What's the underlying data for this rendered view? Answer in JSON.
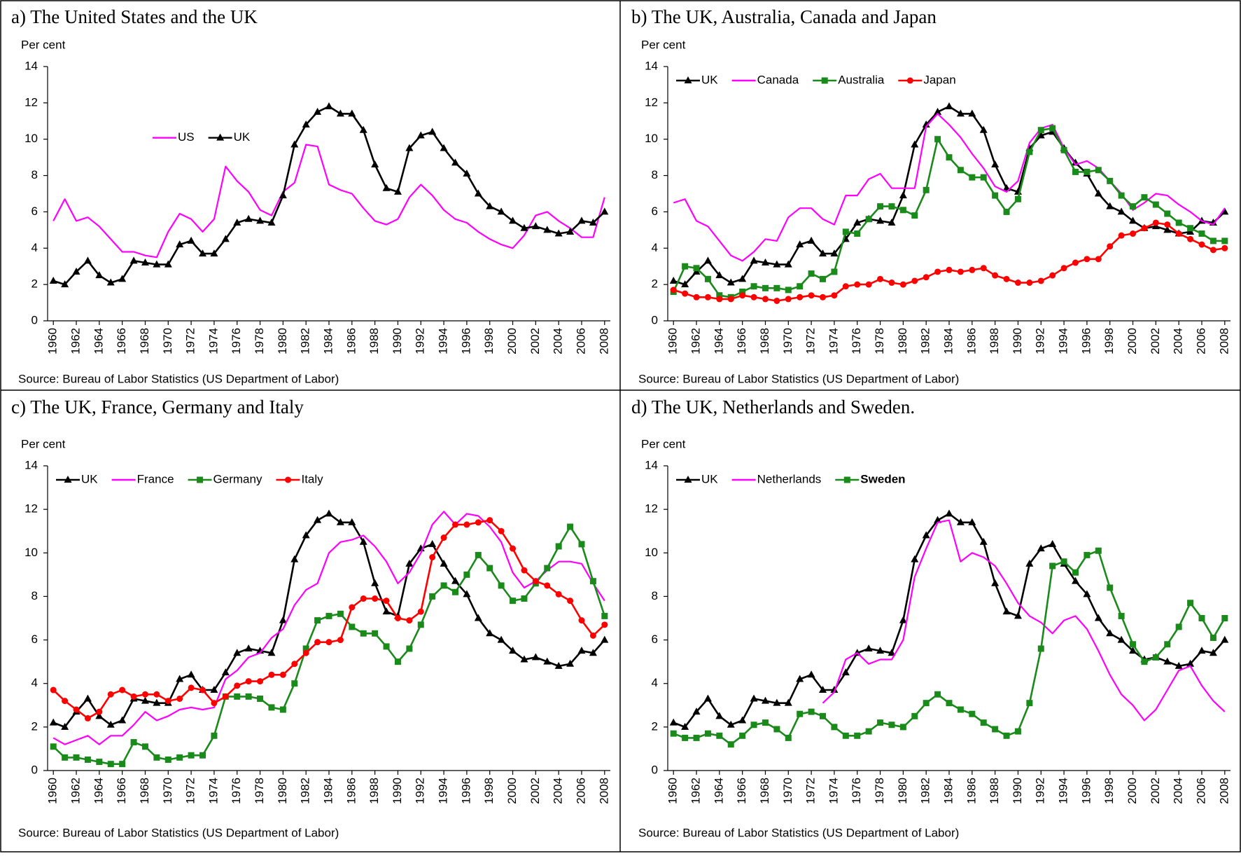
{
  "chart_data": [
    {
      "type": "line",
      "title": "a) The United States and the UK",
      "ylabel": "Per cent",
      "source": "Source: Bureau of Labor Statistics (US Department of Labor)",
      "x": [
        1960,
        1961,
        1962,
        1963,
        1964,
        1965,
        1966,
        1967,
        1968,
        1969,
        1970,
        1971,
        1972,
        1973,
        1974,
        1975,
        1976,
        1977,
        1978,
        1979,
        1980,
        1981,
        1982,
        1983,
        1984,
        1985,
        1986,
        1987,
        1988,
        1989,
        1990,
        1991,
        1992,
        1993,
        1994,
        1995,
        1996,
        1997,
        1998,
        1999,
        2000,
        2001,
        2002,
        2003,
        2004,
        2005,
        2006,
        2007,
        2008
      ],
      "xlim": [
        1960,
        2008
      ],
      "xticks": [
        1960,
        1962,
        1964,
        1966,
        1968,
        1970,
        1972,
        1974,
        1976,
        1978,
        1980,
        1982,
        1984,
        1986,
        1988,
        1990,
        1992,
        1994,
        1996,
        1998,
        2000,
        2002,
        2004,
        2006,
        2008
      ],
      "ylim": [
        0,
        14
      ],
      "yticks": [
        0,
        2,
        4,
        6,
        8,
        10,
        12,
        14
      ],
      "legend": "center left",
      "series": [
        {
          "name": "US",
          "color": "#ff00ff",
          "marker": "none",
          "values": [
            5.5,
            6.7,
            5.5,
            5.7,
            5.2,
            4.5,
            3.8,
            3.8,
            3.6,
            3.5,
            4.9,
            5.9,
            5.6,
            4.9,
            5.6,
            8.5,
            7.7,
            7.1,
            6.1,
            5.8,
            7.1,
            7.6,
            9.7,
            9.6,
            7.5,
            7.2,
            7.0,
            6.2,
            5.5,
            5.3,
            5.6,
            6.8,
            7.5,
            6.9,
            6.1,
            5.6,
            5.4,
            4.9,
            4.5,
            4.2,
            4.0,
            4.7,
            5.8,
            6.0,
            5.5,
            5.1,
            4.6,
            4.6,
            6.8
          ]
        },
        {
          "name": "UK",
          "color": "#000000",
          "marker": "triangle",
          "values": [
            2.2,
            2.0,
            2.7,
            3.3,
            2.5,
            2.1,
            2.3,
            3.3,
            3.2,
            3.1,
            3.1,
            4.2,
            4.4,
            3.7,
            3.7,
            4.5,
            5.4,
            5.6,
            5.5,
            5.4,
            6.9,
            9.7,
            10.8,
            11.5,
            11.8,
            11.4,
            11.4,
            10.5,
            8.6,
            7.3,
            7.1,
            9.5,
            10.2,
            10.4,
            9.5,
            8.7,
            8.1,
            7.0,
            6.3,
            6.0,
            5.5,
            5.1,
            5.2,
            5.0,
            4.8,
            4.9,
            5.5,
            5.4,
            6.0
          ]
        }
      ]
    },
    {
      "type": "line",
      "title": "b)  The UK, Australia, Canada and Japan",
      "ylabel": "Per cent",
      "source": "Source: Bureau of Labor Statistics (US Department of Labor)",
      "x": [
        1960,
        1961,
        1962,
        1963,
        1964,
        1965,
        1966,
        1967,
        1968,
        1969,
        1970,
        1971,
        1972,
        1973,
        1974,
        1975,
        1976,
        1977,
        1978,
        1979,
        1980,
        1981,
        1982,
        1983,
        1984,
        1985,
        1986,
        1987,
        1988,
        1989,
        1990,
        1991,
        1992,
        1993,
        1994,
        1995,
        1996,
        1997,
        1998,
        1999,
        2000,
        2001,
        2002,
        2003,
        2004,
        2005,
        2006,
        2007,
        2008
      ],
      "xlim": [
        1960,
        2008
      ],
      "xticks": [
        1960,
        1962,
        1964,
        1966,
        1968,
        1970,
        1972,
        1974,
        1976,
        1978,
        1980,
        1982,
        1984,
        1986,
        1988,
        1990,
        1992,
        1994,
        1996,
        1998,
        2000,
        2002,
        2004,
        2006,
        2008
      ],
      "ylim": [
        0,
        14
      ],
      "yticks": [
        0,
        2,
        4,
        6,
        8,
        10,
        12,
        14
      ],
      "legend": "upper left",
      "series": [
        {
          "name": "UK",
          "color": "#000000",
          "marker": "triangle",
          "values": [
            2.2,
            2.0,
            2.7,
            3.3,
            2.5,
            2.1,
            2.3,
            3.3,
            3.2,
            3.1,
            3.1,
            4.2,
            4.4,
            3.7,
            3.7,
            4.5,
            5.4,
            5.6,
            5.5,
            5.4,
            6.9,
            9.7,
            10.8,
            11.5,
            11.8,
            11.4,
            11.4,
            10.5,
            8.6,
            7.3,
            7.1,
            9.5,
            10.2,
            10.4,
            9.5,
            8.7,
            8.1,
            7.0,
            6.3,
            6.0,
            5.5,
            5.1,
            5.2,
            5.0,
            4.8,
            4.9,
            5.5,
            5.4,
            6.0
          ]
        },
        {
          "name": "Canada",
          "color": "#ff00ff",
          "marker": "none",
          "values": [
            6.5,
            6.7,
            5.5,
            5.2,
            4.4,
            3.6,
            3.3,
            3.8,
            4.5,
            4.4,
            5.7,
            6.2,
            6.2,
            5.6,
            5.3,
            6.9,
            6.9,
            7.8,
            8.1,
            7.3,
            7.3,
            7.3,
            10.7,
            11.4,
            10.8,
            10.1,
            9.2,
            8.4,
            7.4,
            7.1,
            7.7,
            9.8,
            10.6,
            10.8,
            9.5,
            8.6,
            8.8,
            8.4,
            7.7,
            7.0,
            6.1,
            6.5,
            7.0,
            6.9,
            6.4,
            6.0,
            5.5,
            5.3,
            6.2
          ]
        },
        {
          "name": "Australia",
          "color": "#1a8a1a",
          "marker": "square",
          "values": [
            1.6,
            3.0,
            2.9,
            2.3,
            1.4,
            1.3,
            1.6,
            1.9,
            1.8,
            1.8,
            1.7,
            1.9,
            2.6,
            2.3,
            2.7,
            4.9,
            4.8,
            5.6,
            6.3,
            6.3,
            6.1,
            5.8,
            7.2,
            10.0,
            9.0,
            8.3,
            7.9,
            7.9,
            6.9,
            6.0,
            6.7,
            9.3,
            10.5,
            10.6,
            9.4,
            8.2,
            8.2,
            8.3,
            7.7,
            6.9,
            6.3,
            6.8,
            6.4,
            5.9,
            5.4,
            5.1,
            4.8,
            4.4,
            4.4
          ]
        },
        {
          "name": "Japan",
          "color": "#ff0000",
          "marker": "circle",
          "values": [
            1.7,
            1.5,
            1.3,
            1.3,
            1.2,
            1.2,
            1.4,
            1.3,
            1.2,
            1.1,
            1.2,
            1.3,
            1.4,
            1.3,
            1.4,
            1.9,
            2.0,
            2.0,
            2.3,
            2.1,
            2.0,
            2.2,
            2.4,
            2.7,
            2.8,
            2.7,
            2.8,
            2.9,
            2.5,
            2.3,
            2.1,
            2.1,
            2.2,
            2.5,
            2.9,
            3.2,
            3.4,
            3.4,
            4.1,
            4.7,
            4.8,
            5.1,
            5.4,
            5.3,
            4.8,
            4.5,
            4.2,
            3.9,
            4.0
          ]
        }
      ]
    },
    {
      "type": "line",
      "title": "c)  The UK, France, Germany and Italy",
      "ylabel": "Per cent",
      "source": "Source: Bureau of Labor Statistics (US Department of Labor)",
      "x": [
        1960,
        1961,
        1962,
        1963,
        1964,
        1965,
        1966,
        1967,
        1968,
        1969,
        1970,
        1971,
        1972,
        1973,
        1974,
        1975,
        1976,
        1977,
        1978,
        1979,
        1980,
        1981,
        1982,
        1983,
        1984,
        1985,
        1986,
        1987,
        1988,
        1989,
        1990,
        1991,
        1992,
        1993,
        1994,
        1995,
        1996,
        1997,
        1998,
        1999,
        2000,
        2001,
        2002,
        2003,
        2004,
        2005,
        2006,
        2007,
        2008
      ],
      "xlim": [
        1960,
        2008
      ],
      "xticks": [
        1960,
        1962,
        1964,
        1966,
        1968,
        1970,
        1972,
        1974,
        1976,
        1978,
        1980,
        1982,
        1984,
        1986,
        1988,
        1990,
        1992,
        1994,
        1996,
        1998,
        2000,
        2002,
        2004,
        2006,
        2008
      ],
      "ylim": [
        0,
        14
      ],
      "yticks": [
        0,
        2,
        4,
        6,
        8,
        10,
        12,
        14
      ],
      "legend": "upper left",
      "series": [
        {
          "name": "UK",
          "color": "#000000",
          "marker": "triangle",
          "values": [
            2.2,
            2.0,
            2.7,
            3.3,
            2.5,
            2.1,
            2.3,
            3.3,
            3.2,
            3.1,
            3.1,
            4.2,
            4.4,
            3.7,
            3.7,
            4.5,
            5.4,
            5.6,
            5.5,
            5.4,
            6.9,
            9.7,
            10.8,
            11.5,
            11.8,
            11.4,
            11.4,
            10.5,
            8.6,
            7.3,
            7.1,
            9.5,
            10.2,
            10.4,
            9.5,
            8.7,
            8.1,
            7.0,
            6.3,
            6.0,
            5.5,
            5.1,
            5.2,
            5.0,
            4.8,
            4.9,
            5.5,
            5.4,
            6.0
          ]
        },
        {
          "name": "France",
          "color": "#ff00ff",
          "marker": "none",
          "values": [
            1.5,
            1.2,
            1.4,
            1.6,
            1.2,
            1.6,
            1.6,
            2.1,
            2.7,
            2.3,
            2.5,
            2.8,
            2.9,
            2.8,
            2.9,
            4.2,
            4.6,
            5.2,
            5.4,
            6.1,
            6.5,
            7.6,
            8.3,
            8.6,
            10.0,
            10.5,
            10.6,
            10.8,
            10.3,
            9.6,
            8.6,
            9.1,
            10.0,
            11.3,
            11.9,
            11.3,
            11.8,
            11.7,
            11.2,
            10.5,
            9.1,
            8.4,
            8.7,
            9.2,
            9.6,
            9.6,
            9.5,
            8.6,
            7.8
          ]
        },
        {
          "name": "Germany",
          "color": "#1a8a1a",
          "marker": "square",
          "values": [
            1.1,
            0.6,
            0.6,
            0.5,
            0.4,
            0.3,
            0.3,
            1.3,
            1.1,
            0.6,
            0.5,
            0.6,
            0.7,
            0.7,
            1.6,
            3.4,
            3.4,
            3.4,
            3.3,
            2.9,
            2.8,
            4.0,
            5.6,
            6.9,
            7.1,
            7.2,
            6.6,
            6.3,
            6.3,
            5.7,
            5.0,
            5.6,
            6.7,
            8.0,
            8.5,
            8.2,
            9.0,
            9.9,
            9.3,
            8.5,
            7.8,
            7.9,
            8.6,
            9.3,
            10.3,
            11.2,
            10.4,
            8.7,
            7.1
          ]
        },
        {
          "name": "Italy",
          "color": "#ff0000",
          "marker": "circle",
          "values": [
            3.7,
            3.2,
            2.8,
            2.4,
            2.7,
            3.5,
            3.7,
            3.4,
            3.5,
            3.5,
            3.2,
            3.3,
            3.8,
            3.7,
            3.1,
            3.4,
            3.9,
            4.1,
            4.1,
            4.4,
            4.4,
            4.9,
            5.4,
            5.9,
            5.9,
            6.0,
            7.5,
            7.9,
            7.9,
            7.8,
            7.0,
            6.9,
            7.3,
            9.8,
            10.7,
            11.3,
            11.3,
            11.4,
            11.5,
            11.0,
            10.2,
            9.2,
            8.7,
            8.5,
            8.1,
            7.8,
            6.9,
            6.2,
            6.7
          ]
        }
      ]
    },
    {
      "type": "line",
      "title": "d)  The UK, Netherlands and Sweden.",
      "ylabel": "Per cent",
      "source": "Source: Bureau of Labor Statistics (US Department of Labor)",
      "x": [
        1960,
        1961,
        1962,
        1963,
        1964,
        1965,
        1966,
        1967,
        1968,
        1969,
        1970,
        1971,
        1972,
        1973,
        1974,
        1975,
        1976,
        1977,
        1978,
        1979,
        1980,
        1981,
        1982,
        1983,
        1984,
        1985,
        1986,
        1987,
        1988,
        1989,
        1990,
        1991,
        1992,
        1993,
        1994,
        1995,
        1996,
        1997,
        1998,
        1999,
        2000,
        2001,
        2002,
        2003,
        2004,
        2005,
        2006,
        2007,
        2008
      ],
      "xlim": [
        1960,
        2008
      ],
      "xticks": [
        1960,
        1962,
        1964,
        1966,
        1968,
        1970,
        1972,
        1974,
        1976,
        1978,
        1980,
        1982,
        1984,
        1986,
        1988,
        1990,
        1992,
        1994,
        1996,
        1998,
        2000,
        2002,
        2004,
        2006,
        2008
      ],
      "ylim": [
        0,
        14
      ],
      "yticks": [
        0,
        2,
        4,
        6,
        8,
        10,
        12,
        14
      ],
      "legend": "upper left",
      "series": [
        {
          "name": "UK",
          "color": "#000000",
          "marker": "triangle",
          "values": [
            2.2,
            2.0,
            2.7,
            3.3,
            2.5,
            2.1,
            2.3,
            3.3,
            3.2,
            3.1,
            3.1,
            4.2,
            4.4,
            3.7,
            3.7,
            4.5,
            5.4,
            5.6,
            5.5,
            5.4,
            6.9,
            9.7,
            10.8,
            11.5,
            11.8,
            11.4,
            11.4,
            10.5,
            8.6,
            7.3,
            7.1,
            9.5,
            10.2,
            10.4,
            9.5,
            8.7,
            8.1,
            7.0,
            6.3,
            6.0,
            5.5,
            5.1,
            5.2,
            5.0,
            4.8,
            4.9,
            5.5,
            5.4,
            6.0
          ]
        },
        {
          "name": "Netherlands",
          "color": "#ff00ff",
          "marker": "none",
          "values": [
            null,
            null,
            null,
            null,
            null,
            null,
            null,
            null,
            null,
            null,
            null,
            null,
            null,
            3.1,
            3.6,
            5.1,
            5.4,
            4.9,
            5.1,
            5.1,
            6.0,
            8.9,
            10.2,
            11.4,
            11.5,
            9.6,
            10.0,
            9.8,
            9.4,
            8.6,
            7.7,
            7.1,
            6.8,
            6.3,
            6.9,
            7.1,
            6.5,
            5.5,
            4.4,
            3.5,
            3.0,
            2.3,
            2.8,
            3.7,
            4.6,
            4.8,
            3.9,
            3.2,
            2.7
          ]
        },
        {
          "name": "Sweden",
          "color": "#1a8a1a",
          "marker": "square",
          "bold": true,
          "values": [
            1.7,
            1.5,
            1.5,
            1.7,
            1.6,
            1.2,
            1.6,
            2.1,
            2.2,
            1.9,
            1.5,
            2.6,
            2.7,
            2.5,
            2.0,
            1.6,
            1.6,
            1.8,
            2.2,
            2.1,
            2.0,
            2.5,
            3.1,
            3.5,
            3.1,
            2.8,
            2.6,
            2.2,
            1.9,
            1.6,
            1.8,
            3.1,
            5.6,
            9.4,
            9.6,
            9.1,
            9.9,
            10.1,
            8.4,
            7.1,
            5.8,
            5.0,
            5.2,
            5.8,
            6.6,
            7.7,
            7.0,
            6.1,
            7.0
          ]
        }
      ]
    }
  ]
}
